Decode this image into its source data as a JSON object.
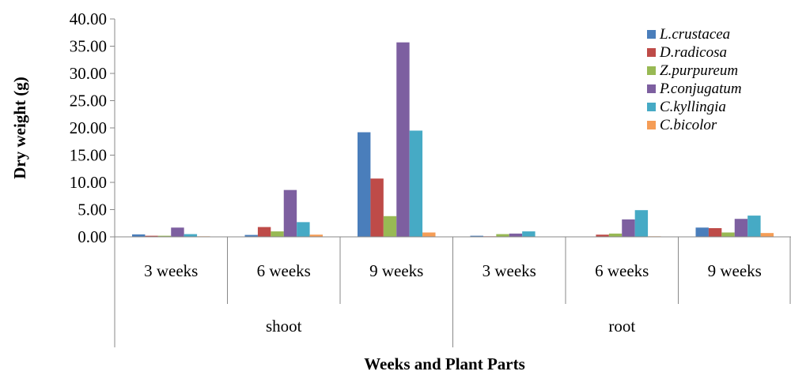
{
  "chart_data": {
    "type": "bar",
    "title": "",
    "xlabel": "Weeks and Plant Parts",
    "ylabel": "Dry weight (g)",
    "ylim": [
      0,
      40
    ],
    "yticks": [
      "0.00",
      "5.00",
      "10.00",
      "15.00",
      "20.00",
      "25.00",
      "30.00",
      "35.00",
      "40.00"
    ],
    "ytick_values": [
      0,
      5,
      10,
      15,
      20,
      25,
      30,
      35,
      40
    ],
    "categories": [
      "3 weeks",
      "6 weeks",
      "9 weeks",
      "3 weeks",
      "6 weeks",
      "9 weeks"
    ],
    "groups": [
      {
        "label": "shoot",
        "span": 3
      },
      {
        "label": "root",
        "span": 3
      }
    ],
    "grid": false,
    "legend_position": "top-right",
    "series": [
      {
        "name": "L.crustacea",
        "color": "#4a7ebb",
        "values": [
          0.45,
          0.35,
          19.2,
          0.2,
          0.05,
          1.7
        ]
      },
      {
        "name": "D.radicosa",
        "color": "#be4b48",
        "values": [
          0.2,
          1.8,
          10.7,
          0.1,
          0.4,
          1.6
        ]
      },
      {
        "name": "Z.purpureum",
        "color": "#98b954",
        "values": [
          0.2,
          1.0,
          3.8,
          0.5,
          0.6,
          0.8
        ]
      },
      {
        "name": "P.conjugatum",
        "color": "#7d5fa0",
        "values": [
          1.7,
          8.6,
          35.7,
          0.6,
          3.2,
          3.3
        ]
      },
      {
        "name": "C.kyllingia",
        "color": "#46aac5",
        "values": [
          0.5,
          2.7,
          19.5,
          1.0,
          4.9,
          3.9
        ]
      },
      {
        "name": "C.bicolor",
        "color": "#f59d56",
        "values": [
          0.1,
          0.4,
          0.8,
          0.05,
          0.1,
          0.7
        ]
      }
    ]
  }
}
